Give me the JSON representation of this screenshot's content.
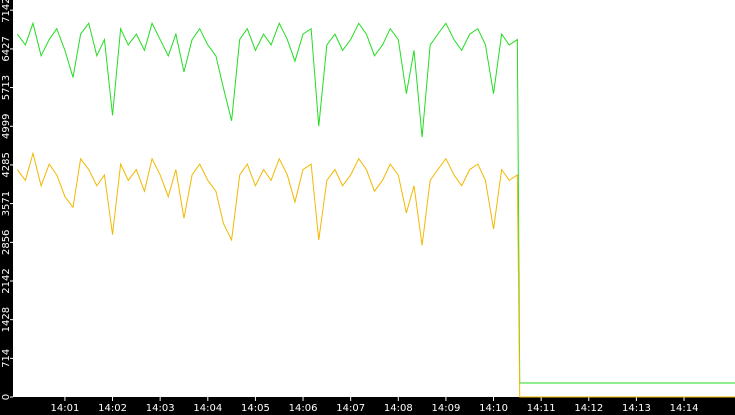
{
  "chart_data": {
    "type": "line",
    "x": [
      0,
      0.17,
      0.33,
      0.5,
      0.67,
      0.83,
      1,
      1.17,
      1.33,
      1.5,
      1.67,
      1.83,
      2,
      2.17,
      2.33,
      2.5,
      2.67,
      2.83,
      3,
      3.17,
      3.33,
      3.5,
      3.67,
      3.83,
      4,
      4.17,
      4.33,
      4.5,
      4.67,
      4.83,
      5,
      5.17,
      5.33,
      5.5,
      5.67,
      5.83,
      6,
      6.17,
      6.33,
      6.5,
      6.67,
      6.83,
      7,
      7.17,
      7.33,
      7.5,
      7.67,
      7.83,
      8,
      8.17,
      8.33,
      8.5,
      8.67,
      8.83,
      9,
      9.17,
      9.33,
      9.5,
      9.67,
      9.83,
      10,
      10.17,
      10.33,
      10.5,
      10.55,
      15.07
    ],
    "series": [
      {
        "color": "#22dd22",
        "values": [
          6700,
          6500,
          6900,
          6300,
          6600,
          6800,
          6400,
          5900,
          6700,
          6900,
          6300,
          6600,
          5200,
          6800,
          6500,
          6700,
          6400,
          6900,
          6600,
          6300,
          6700,
          6000,
          6600,
          6800,
          6500,
          6300,
          5700,
          5100,
          6600,
          6800,
          6400,
          6700,
          6500,
          6900,
          6600,
          6200,
          6700,
          6800,
          5000,
          6500,
          6700,
          6400,
          6600,
          6900,
          6700,
          6300,
          6500,
          6800,
          6600,
          5600,
          6400,
          4800,
          6500,
          6700,
          6900,
          6600,
          6400,
          6700,
          6800,
          6500,
          5600,
          6700,
          6500,
          6600,
          258,
          258
        ]
      },
      {
        "color": "#f2b800",
        "values": [
          4200,
          4000,
          4500,
          3900,
          4300,
          4100,
          3700,
          3500,
          4400,
          4200,
          3900,
          4100,
          3000,
          4300,
          4000,
          4200,
          3800,
          4400,
          4100,
          3700,
          4200,
          3300,
          4100,
          4300,
          4000,
          3800,
          3200,
          2900,
          4100,
          4300,
          3900,
          4200,
          4000,
          4400,
          4100,
          3600,
          4200,
          4300,
          2900,
          4000,
          4200,
          3900,
          4100,
          4400,
          4200,
          3800,
          4000,
          4300,
          4100,
          3400,
          3900,
          2800,
          4000,
          4200,
          4400,
          4100,
          3900,
          4200,
          4300,
          4000,
          3100,
          4200,
          4000,
          4100,
          0,
          0
        ]
      }
    ],
    "ylim": [
      0,
      7330
    ],
    "yticks": [
      0,
      714,
      1428,
      2142,
      2856,
      3571,
      4285,
      4999,
      5713,
      6427,
      7142
    ],
    "xlim": [
      -0.09,
      15.07
    ],
    "xticks": [
      {
        "value": 1,
        "label": "14:01"
      },
      {
        "value": 2,
        "label": "14:02"
      },
      {
        "value": 3,
        "label": "14:03"
      },
      {
        "value": 4,
        "label": "14:04"
      },
      {
        "value": 5,
        "label": "14:05"
      },
      {
        "value": 6,
        "label": "14:06"
      },
      {
        "value": 7,
        "label": "14:07"
      },
      {
        "value": 8,
        "label": "14:08"
      },
      {
        "value": 9,
        "label": "14:09"
      },
      {
        "value": 10,
        "label": "14:10"
      },
      {
        "value": 11,
        "label": "14:11"
      },
      {
        "value": 12,
        "label": "14:12"
      },
      {
        "value": 13,
        "label": "14:13"
      },
      {
        "value": 14,
        "label": "14:14"
      }
    ]
  }
}
